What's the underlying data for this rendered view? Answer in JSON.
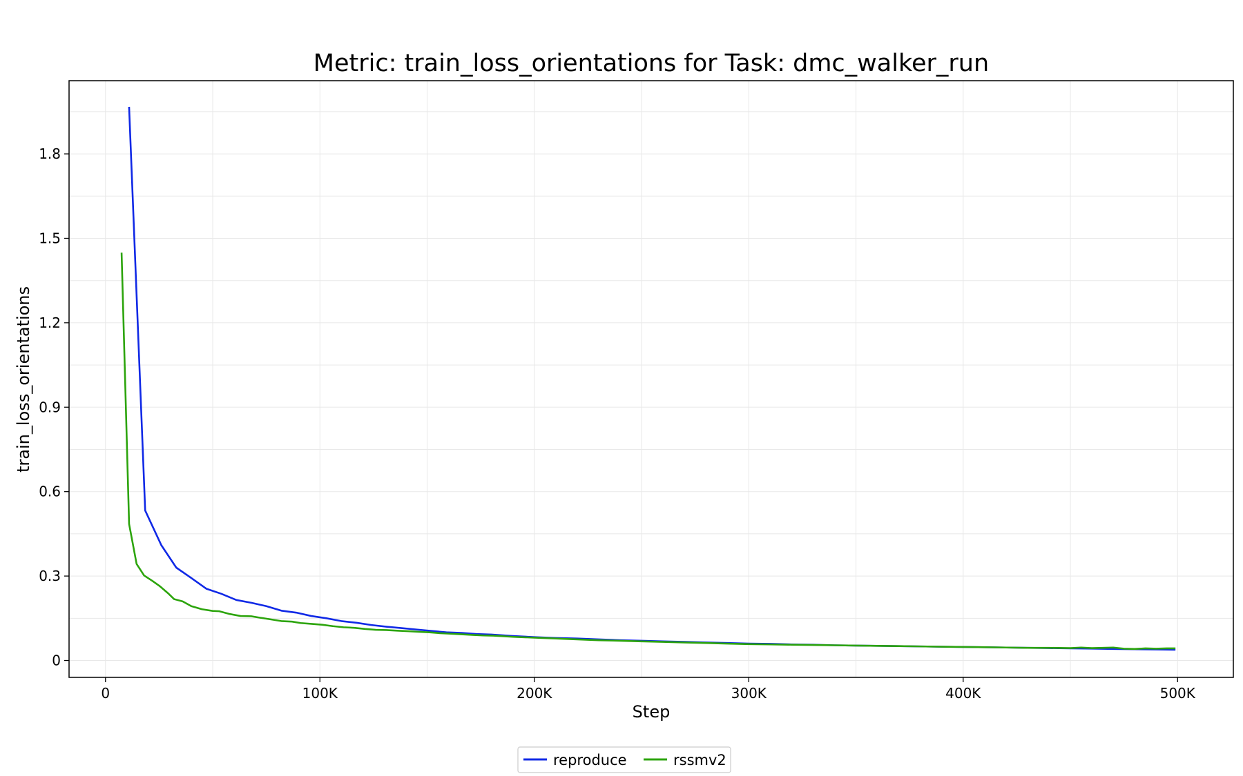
{
  "chart_data": {
    "type": "line",
    "title": "Metric: train_loss_orientations for Task: dmc_walker_run",
    "xlabel": "Step",
    "ylabel": "train_loss_orientations",
    "xlim": [
      -17000,
      526000
    ],
    "ylim": [
      -0.06,
      2.06
    ],
    "xticks": [
      0,
      100000,
      200000,
      300000,
      400000,
      500000
    ],
    "xtick_labels": [
      "0",
      "100K",
      "200K",
      "300K",
      "400K",
      "500K"
    ],
    "yticks": [
      0,
      0.3,
      0.6,
      0.9,
      1.2,
      1.5,
      1.8
    ],
    "ytick_labels": [
      "0",
      "0.3",
      "0.6",
      "0.9",
      "1.2",
      "1.5",
      "1.8"
    ],
    "grid": true,
    "legend_position": "bottom-center",
    "series": [
      {
        "name": "reproduce",
        "color": "#1029e6",
        "x": [
          11000,
          18500,
          26000,
          33000,
          40000,
          47000,
          54000,
          61000,
          68000,
          75000,
          82000,
          89000,
          96000,
          103000,
          110000,
          117000,
          124000,
          131000,
          138000,
          145000,
          152000,
          159000,
          166000,
          173000,
          180000,
          190000,
          200000,
          210000,
          220000,
          230000,
          240000,
          250000,
          260000,
          270000,
          280000,
          290000,
          300000,
          310000,
          320000,
          330000,
          340000,
          350000,
          360000,
          370000,
          380000,
          390000,
          400000,
          410000,
          420000,
          430000,
          440000,
          450000,
          460000,
          470000,
          480000,
          490000,
          499000
        ],
        "values": [
          1.967,
          0.533,
          0.41,
          0.33,
          0.293,
          0.255,
          0.237,
          0.215,
          0.205,
          0.193,
          0.177,
          0.17,
          0.158,
          0.15,
          0.14,
          0.134,
          0.126,
          0.12,
          0.115,
          0.11,
          0.105,
          0.1,
          0.098,
          0.094,
          0.092,
          0.087,
          0.083,
          0.08,
          0.078,
          0.075,
          0.072,
          0.07,
          0.068,
          0.066,
          0.064,
          0.062,
          0.06,
          0.059,
          0.057,
          0.056,
          0.054,
          0.053,
          0.052,
          0.051,
          0.05,
          0.049,
          0.048,
          0.047,
          0.046,
          0.045,
          0.044,
          0.043,
          0.042,
          0.041,
          0.04,
          0.039,
          0.038
        ]
      },
      {
        "name": "rssmv2",
        "color": "#2ca40c",
        "x": [
          7500,
          11000,
          14500,
          18000,
          22000,
          25500,
          29000,
          32000,
          36000,
          40000,
          45000,
          50000,
          53000,
          58000,
          63000,
          68000,
          72000,
          78000,
          82000,
          87000,
          91000,
          96000,
          101000,
          106000,
          111000,
          116000,
          121000,
          126000,
          131000,
          136000,
          141000,
          146000,
          151000,
          156000,
          161000,
          166000,
          171000,
          176000,
          181000,
          190000,
          200000,
          210000,
          220000,
          230000,
          240000,
          250000,
          260000,
          270000,
          280000,
          290000,
          300000,
          310000,
          320000,
          330000,
          340000,
          350000,
          360000,
          370000,
          380000,
          390000,
          400000,
          410000,
          420000,
          430000,
          440000,
          450000,
          455000,
          460000,
          465000,
          470000,
          475000,
          480000,
          485000,
          490000,
          495000,
          499000
        ],
        "values": [
          1.449,
          0.485,
          0.343,
          0.302,
          0.282,
          0.263,
          0.24,
          0.218,
          0.21,
          0.193,
          0.182,
          0.176,
          0.175,
          0.165,
          0.158,
          0.157,
          0.152,
          0.145,
          0.14,
          0.138,
          0.133,
          0.13,
          0.127,
          0.122,
          0.118,
          0.116,
          0.112,
          0.109,
          0.108,
          0.106,
          0.104,
          0.102,
          0.1,
          0.097,
          0.095,
          0.093,
          0.091,
          0.089,
          0.088,
          0.084,
          0.081,
          0.078,
          0.075,
          0.072,
          0.07,
          0.068,
          0.066,
          0.064,
          0.062,
          0.06,
          0.058,
          0.057,
          0.056,
          0.055,
          0.054,
          0.053,
          0.052,
          0.051,
          0.05,
          0.049,
          0.048,
          0.047,
          0.046,
          0.045,
          0.045,
          0.044,
          0.046,
          0.044,
          0.045,
          0.046,
          0.042,
          0.041,
          0.043,
          0.042,
          0.043,
          0.043
        ]
      }
    ]
  }
}
